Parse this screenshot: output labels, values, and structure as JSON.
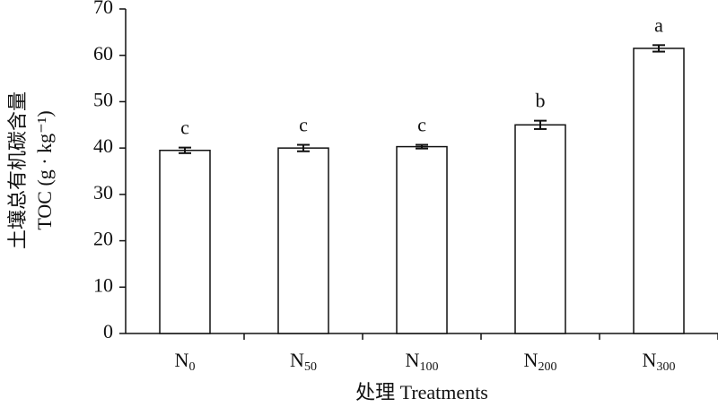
{
  "chart_data": {
    "type": "bar",
    "y_label_lines": [
      "土壤总有机碳含量",
      "TOC (g · kg⁻¹)"
    ],
    "x_label": "处理 Treatments",
    "categories": [
      "N0",
      "N50",
      "N100",
      "N200",
      "N300"
    ],
    "values": [
      39.5,
      40,
      40.3,
      45,
      61.5
    ],
    "errors": [
      0.6,
      0.7,
      0.4,
      0.9,
      0.7
    ],
    "significance": [
      "c",
      "c",
      "c",
      "b",
      "a"
    ],
    "color": "#ffffff",
    "ylim": [
      0,
      70
    ],
    "yticks": [
      0,
      10,
      20,
      30,
      40,
      50,
      60,
      70
    ],
    "grid": false
  }
}
